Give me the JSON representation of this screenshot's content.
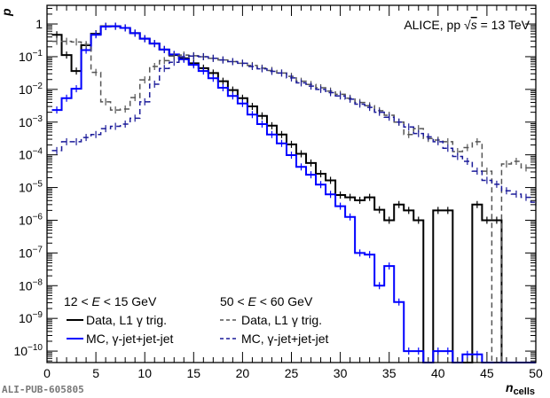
{
  "chart_data": {
    "type": "line",
    "style": "step-histogram",
    "title": "ALICE, pp √s = 13 TeV",
    "title_parts": {
      "prefix": "ALICE, pp ",
      "sqrt": "√",
      "s": "s",
      "suffix": " = 13 TeV"
    },
    "xlabel": "n",
    "xlabel_sub": "cells",
    "ylabel": "p",
    "xlim": [
      0,
      50
    ],
    "ylim_log10": [
      -10.35,
      0.57
    ],
    "yscale": "log",
    "x_ticks": [
      "0",
      "5",
      "10",
      "15",
      "20",
      "25",
      "30",
      "35",
      "40",
      "45",
      "50"
    ],
    "y_ticks": [
      {
        "base": "1",
        "exp": ""
      },
      {
        "base": "10",
        "exp": "−1"
      },
      {
        "base": "10",
        "exp": "−2"
      },
      {
        "base": "10",
        "exp": "−3"
      },
      {
        "base": "10",
        "exp": "−4"
      },
      {
        "base": "10",
        "exp": "−5"
      },
      {
        "base": "10",
        "exp": "−6"
      },
      {
        "base": "10",
        "exp": "−7"
      },
      {
        "base": "10",
        "exp": "−8"
      },
      {
        "base": "10",
        "exp": "−9"
      },
      {
        "base": "10",
        "exp": "−10"
      }
    ],
    "bin_centers_start": 1,
    "bin_width": 1,
    "legend": {
      "placement": "bottom-left",
      "headers": [
        "12 < E < 15 GeV",
        "50 < E < 60 GeV"
      ],
      "header_parts": [
        {
          "pre": "12 < ",
          "var": "E",
          "post": " < 15 GeV"
        },
        {
          "pre": "50 < ",
          "var": "E",
          "post": " < 60 GeV"
        }
      ]
    },
    "series": [
      {
        "name": "Data, L1 γ trig.",
        "group": "12 < E < 15 GeV",
        "color": "#000000",
        "dash": false,
        "log10_values": [
          -0.33,
          -0.95,
          -1.44,
          -0.65,
          -0.3,
          -0.07,
          -0.07,
          -0.12,
          -0.28,
          -0.45,
          -0.6,
          -0.78,
          -0.95,
          -1.05,
          -1.2,
          -1.35,
          -1.5,
          -1.75,
          -2.02,
          -2.27,
          -2.52,
          -2.81,
          -3.11,
          -3.38,
          -3.68,
          -3.97,
          -4.25,
          -4.58,
          -4.78,
          -5.23,
          -5.3,
          -5.39,
          -5.3,
          -5.68,
          -6.0,
          -5.52,
          -5.7,
          -6.0,
          null,
          -5.7,
          -5.7,
          null,
          null,
          -5.52,
          -6.0,
          -6.0,
          null,
          null,
          null,
          null
        ]
      },
      {
        "name": "MC, γ-jet+jet-jet",
        "group": "12 < E < 15 GeV",
        "color": "#0000ff",
        "dash": false,
        "log10_values": [
          -2.63,
          -2.27,
          -1.98,
          -0.8,
          -0.33,
          -0.08,
          -0.07,
          -0.12,
          -0.28,
          -0.45,
          -0.6,
          -0.78,
          -0.93,
          -1.08,
          -1.25,
          -1.44,
          -1.66,
          -1.95,
          -2.2,
          -2.43,
          -2.77,
          -3.06,
          -3.38,
          -3.65,
          -4.01,
          -4.37,
          -4.61,
          -4.91,
          -5.21,
          -5.57,
          -5.9,
          -7.0,
          -7.05,
          -8.0,
          -7.4,
          -8.5,
          -10.0,
          -10.0,
          null,
          -10.0,
          -10.0,
          null,
          -10.1,
          -10.1,
          null,
          null,
          null,
          null,
          null,
          null
        ]
      },
      {
        "name": "Data, L1 γ trig.",
        "group": "50 < E < 60 GeV",
        "color": "#555555",
        "dash": true,
        "log10_values": [
          -0.53,
          -0.53,
          -0.55,
          -0.63,
          -1.48,
          -2.38,
          -2.63,
          -2.6,
          -2.25,
          -1.71,
          -1.3,
          -1.12,
          -0.98,
          -0.95,
          -0.97,
          -1.0,
          -1.05,
          -1.1,
          -1.15,
          -1.2,
          -1.27,
          -1.35,
          -1.42,
          -1.5,
          -1.6,
          -1.75,
          -1.85,
          -1.95,
          -2.05,
          -2.15,
          -2.27,
          -2.4,
          -2.5,
          -2.65,
          -2.79,
          -3.0,
          -3.38,
          -3.2,
          -3.5,
          -3.55,
          -3.6,
          -3.9,
          -3.78,
          -3.6,
          -4.5,
          null,
          -4.28,
          -4.2,
          -4.4,
          -4.3
        ]
      },
      {
        "name": "MC, γ-jet+jet-jet",
        "group": "50 < E < 60 GeV",
        "color": "#1a1a99",
        "dash": true,
        "log10_values": [
          -3.87,
          -3.6,
          -3.6,
          -3.47,
          -3.38,
          -3.2,
          -3.13,
          -3.06,
          -2.88,
          -2.38,
          -1.84,
          -1.36,
          -1.17,
          -1.0,
          -0.98,
          -1.0,
          -1.05,
          -1.1,
          -1.15,
          -1.2,
          -1.3,
          -1.37,
          -1.45,
          -1.5,
          -1.65,
          -1.8,
          -1.9,
          -2.0,
          -2.1,
          -2.2,
          -2.3,
          -2.45,
          -2.55,
          -2.7,
          -2.85,
          -3.0,
          -3.15,
          -3.35,
          -3.45,
          -3.6,
          -3.8,
          -4.05,
          -4.2,
          -4.5,
          -4.78,
          -4.9,
          -5.1,
          -5.2,
          -5.3,
          -5.45
        ]
      }
    ]
  },
  "watermark": "ALI-PUB-605805"
}
